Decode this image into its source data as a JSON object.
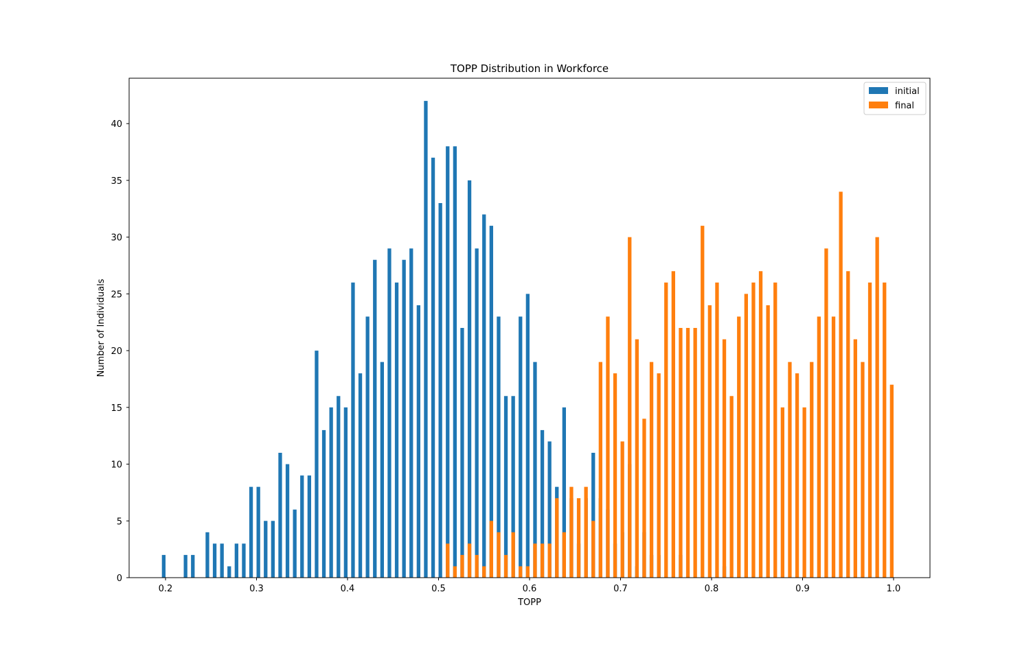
{
  "chart_data": {
    "type": "bar",
    "title": "TOPP Distribution in Workforce",
    "xlabel": "TOPP",
    "ylabel": "Number of Individuals",
    "xlim": [
      0.16,
      1.04
    ],
    "ylim": [
      0,
      44
    ],
    "xticks": [
      "0.2",
      "0.3",
      "0.4",
      "0.5",
      "0.6",
      "0.7",
      "0.8",
      "0.9",
      "1.0"
    ],
    "yticks": [
      "0",
      "5",
      "10",
      "15",
      "20",
      "25",
      "30",
      "35",
      "40"
    ],
    "legend_position": "top-right",
    "grid": false,
    "bin_width": 0.008,
    "series": [
      {
        "name": "initial",
        "color": "#1f77b4",
        "x": [
          0.2,
          0.224,
          0.232,
          0.248,
          0.256,
          0.264,
          0.272,
          0.28,
          0.288,
          0.296,
          0.304,
          0.312,
          0.32,
          0.328,
          0.336,
          0.344,
          0.352,
          0.36,
          0.368,
          0.376,
          0.384,
          0.392,
          0.4,
          0.408,
          0.416,
          0.424,
          0.432,
          0.44,
          0.448,
          0.456,
          0.464,
          0.472,
          0.48,
          0.488,
          0.496,
          0.504,
          0.512,
          0.52,
          0.528,
          0.536,
          0.544,
          0.552,
          0.56,
          0.568,
          0.576,
          0.584,
          0.592,
          0.6,
          0.608,
          0.616,
          0.624,
          0.632,
          0.64,
          0.648,
          0.656,
          0.664,
          0.672,
          0.68,
          0.688,
          0.696,
          0.704,
          0.712,
          0.72,
          0.728,
          0.736,
          0.744,
          0.768,
          0.816
        ],
        "values": [
          2,
          2,
          2,
          4,
          3,
          3,
          1,
          3,
          3,
          8,
          8,
          5,
          5,
          11,
          10,
          6,
          9,
          9,
          20,
          13,
          15,
          16,
          15,
          26,
          18,
          23,
          28,
          19,
          29,
          26,
          28,
          29,
          24,
          42,
          37,
          33,
          38,
          38,
          22,
          35,
          29,
          32,
          31,
          23,
          16,
          16,
          23,
          25,
          19,
          13,
          12,
          8,
          15,
          7,
          3,
          7,
          11,
          7,
          6,
          3,
          4,
          10,
          1,
          4,
          2,
          2,
          2,
          1
        ]
      },
      {
        "name": "final",
        "color": "#ff7f0e",
        "x": [
          0.508,
          0.516,
          0.524,
          0.532,
          0.54,
          0.548,
          0.556,
          0.564,
          0.572,
          0.58,
          0.588,
          0.596,
          0.604,
          0.612,
          0.62,
          0.628,
          0.636,
          0.644,
          0.652,
          0.66,
          0.668,
          0.676,
          0.684,
          0.692,
          0.7,
          0.708,
          0.716,
          0.724,
          0.732,
          0.74,
          0.748,
          0.756,
          0.764,
          0.772,
          0.78,
          0.788,
          0.796,
          0.804,
          0.812,
          0.82,
          0.828,
          0.836,
          0.844,
          0.852,
          0.86,
          0.868,
          0.876,
          0.884,
          0.892,
          0.9,
          0.908,
          0.916,
          0.924,
          0.932,
          0.94,
          0.948,
          0.956,
          0.964,
          0.972,
          0.98,
          0.988,
          0.996
        ],
        "values": [
          3,
          1,
          2,
          3,
          2,
          1,
          5,
          4,
          2,
          4,
          1,
          1,
          3,
          3,
          3,
          7,
          4,
          8,
          7,
          8,
          5,
          19,
          23,
          18,
          12,
          30,
          21,
          14,
          19,
          18,
          26,
          27,
          22,
          22,
          22,
          31,
          24,
          26,
          21,
          16,
          23,
          25,
          26,
          27,
          24,
          26,
          15,
          19,
          18,
          15,
          19,
          23,
          29,
          23,
          34,
          27,
          21,
          19,
          26,
          30,
          26,
          17
        ]
      }
    ]
  }
}
